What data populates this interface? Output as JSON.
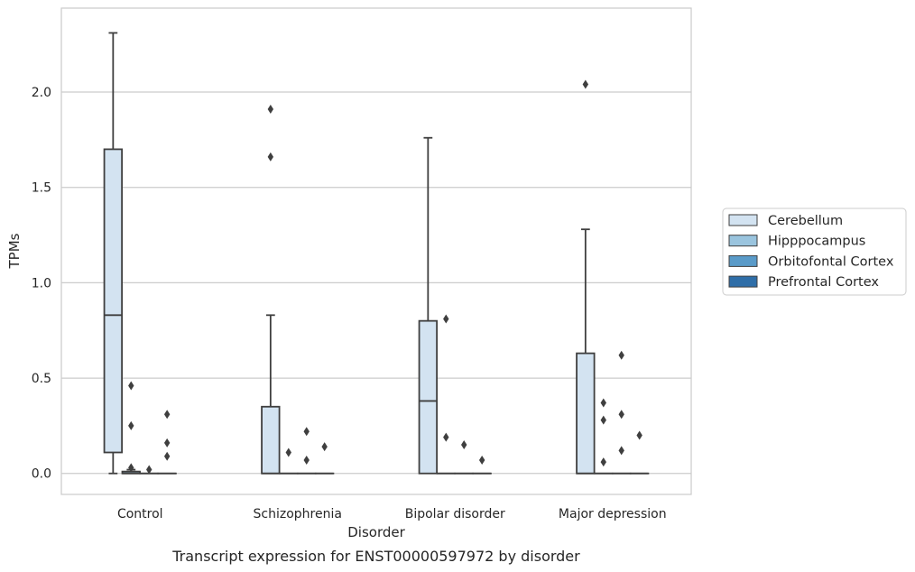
{
  "caption": "Transcript expression for ENST00000597972 by disorder",
  "chart_data": {
    "type": "box",
    "xlabel": "Disorder",
    "ylabel": "TPMs",
    "categories": [
      "Control",
      "Schizophrenia",
      "Bipolar disorder",
      "Major depression"
    ],
    "ylim": [
      -0.11,
      2.44
    ],
    "yticks": [
      0.0,
      0.5,
      1.0,
      1.5,
      2.0
    ],
    "ytick_labels": [
      "0.0",
      "0.5",
      "1.0",
      "1.5",
      "2.0"
    ],
    "grid": "horizontal",
    "legend_position": "right",
    "series": [
      {
        "name": "Cerebellum",
        "color": "#d3e3f1",
        "boxes": [
          {
            "q1": 0.11,
            "median": 0.83,
            "q3": 1.7,
            "whisker_low": 0.0,
            "whisker_high": 2.31,
            "outliers": []
          },
          {
            "q1": 0.0,
            "median": 0.0,
            "q3": 0.35,
            "whisker_low": 0.0,
            "whisker_high": 0.83,
            "outliers": [
              1.66,
              1.91
            ]
          },
          {
            "q1": 0.0,
            "median": 0.38,
            "q3": 0.8,
            "whisker_low": 0.0,
            "whisker_high": 1.76,
            "outliers": []
          },
          {
            "q1": 0.0,
            "median": 0.0,
            "q3": 0.63,
            "whisker_low": 0.0,
            "whisker_high": 1.28,
            "outliers": [
              2.04
            ]
          }
        ]
      },
      {
        "name": "Hipppocampus",
        "color": "#9ac4de",
        "boxes": [
          {
            "q1": 0.0,
            "median": 0.0,
            "q3": 0.01,
            "whisker_low": 0.0,
            "whisker_high": 0.02,
            "outliers": [
              0.03,
              0.25,
              0.46
            ]
          },
          {
            "q1": 0.0,
            "median": 0.0,
            "q3": 0.0,
            "whisker_low": 0.0,
            "whisker_high": 0.0,
            "outliers": [
              0.11
            ]
          },
          {
            "q1": 0.0,
            "median": 0.0,
            "q3": 0.0,
            "whisker_low": 0.0,
            "whisker_high": 0.0,
            "outliers": [
              0.19,
              0.81
            ]
          },
          {
            "q1": 0.0,
            "median": 0.0,
            "q3": 0.0,
            "whisker_low": 0.0,
            "whisker_high": 0.0,
            "outliers": [
              0.06,
              0.28,
              0.37
            ]
          }
        ]
      },
      {
        "name": "Orbitofontal Cortex",
        "color": "#5a9bc9",
        "boxes": [
          {
            "q1": 0.0,
            "median": 0.0,
            "q3": 0.0,
            "whisker_low": 0.0,
            "whisker_high": 0.0,
            "outliers": [
              0.02
            ]
          },
          {
            "q1": 0.0,
            "median": 0.0,
            "q3": 0.0,
            "whisker_low": 0.0,
            "whisker_high": 0.0,
            "outliers": [
              0.07,
              0.22
            ]
          },
          {
            "q1": 0.0,
            "median": 0.0,
            "q3": 0.0,
            "whisker_low": 0.0,
            "whisker_high": 0.0,
            "outliers": [
              0.15
            ]
          },
          {
            "q1": 0.0,
            "median": 0.0,
            "q3": 0.0,
            "whisker_low": 0.0,
            "whisker_high": 0.0,
            "outliers": [
              0.12,
              0.31,
              0.62
            ]
          }
        ]
      },
      {
        "name": "Prefrontal Cortex",
        "color": "#2f6ea8",
        "boxes": [
          {
            "q1": 0.0,
            "median": 0.0,
            "q3": 0.0,
            "whisker_low": 0.0,
            "whisker_high": 0.0,
            "outliers": [
              0.09,
              0.16,
              0.31
            ]
          },
          {
            "q1": 0.0,
            "median": 0.0,
            "q3": 0.0,
            "whisker_low": 0.0,
            "whisker_high": 0.0,
            "outliers": [
              0.14
            ]
          },
          {
            "q1": 0.0,
            "median": 0.0,
            "q3": 0.0,
            "whisker_low": 0.0,
            "whisker_high": 0.0,
            "outliers": [
              0.07
            ]
          },
          {
            "q1": 0.0,
            "median": 0.0,
            "q3": 0.0,
            "whisker_low": 0.0,
            "whisker_high": 0.0,
            "outliers": [
              0.2
            ]
          }
        ]
      }
    ]
  }
}
